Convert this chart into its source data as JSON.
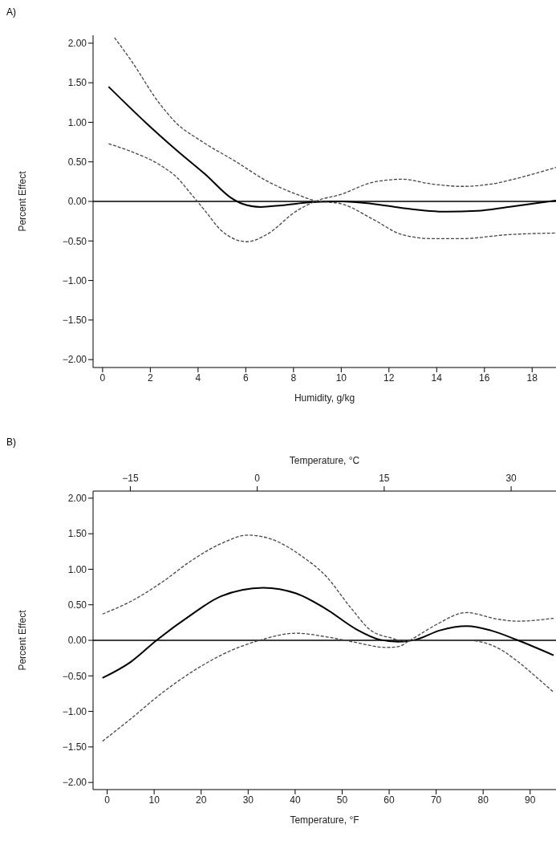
{
  "chart_data": [
    {
      "type": "line",
      "title": "A)",
      "xlabel": "Humidity, g/kg",
      "ylabel": "Percent Effect",
      "xlim": [
        -0.4,
        19
      ],
      "xticks": [
        0,
        2,
        4,
        6,
        8,
        10,
        12,
        14,
        16,
        18
      ],
      "ylim": [
        -2.1,
        2.1
      ],
      "yticks": [
        {
          "value": 2,
          "label": "2.00"
        },
        {
          "value": 1.5,
          "label": "1.50"
        },
        {
          "value": 1,
          "label": "1.00"
        },
        {
          "value": 0.5,
          "label": "0.50"
        },
        {
          "value": 0,
          "label": "0.00"
        },
        {
          "value": -0.5,
          "label": "−0.50"
        },
        {
          "value": -1,
          "label": "−1.00"
        },
        {
          "value": -1.5,
          "label": "−1.50"
        },
        {
          "value": -2,
          "label": "−2.00"
        }
      ],
      "grid": false,
      "marker": "none",
      "ref_lines": [
        {
          "axis": "y",
          "value": 0,
          "color": "#000000"
        }
      ],
      "series": [
        {
          "color": "#000000",
          "line_style": "solid",
          "x": [
            0.25,
            1.83,
            3.09,
            4.35,
            5.36,
            5.86,
            6.62,
            7.5,
            8.76,
            10.0,
            11.3,
            12.5,
            14.4,
            15.7,
            17.0,
            19.0
          ],
          "values": [
            1.45,
            0.99,
            0.65,
            0.33,
            0.05,
            -0.03,
            -0.07,
            -0.05,
            -0.01,
            0,
            -0.03,
            -0.08,
            -0.13,
            -0.12,
            -0.07,
            0.01
          ]
        },
        {
          "color": "#444444",
          "line_style": "dashed",
          "x": [
            0.5,
            1.2,
            2.33,
            3.09,
            4.1,
            5.6,
            6.87,
            8.13,
            8.89,
            10.0,
            11.3,
            12.55,
            13.8,
            15.07,
            17.0,
            19.0
          ],
          "values": [
            2.07,
            1.78,
            1.26,
            0.99,
            0.77,
            0.5,
            0.26,
            0.09,
            0.01,
            -0.03,
            -0.22,
            -0.42,
            -0.47,
            -0.47,
            -0.42,
            -0.4
          ]
        },
        {
          "color": "#444444",
          "line_style": "dashed",
          "x": [
            0.25,
            1.2,
            2.46,
            3.09,
            3.72,
            4.35,
            4.98,
            6.05,
            6.87,
            8.13,
            9.0,
            10.0,
            11.3,
            12.55,
            13.8,
            15.07,
            16.3,
            17.6,
            19.0
          ],
          "values": [
            0.73,
            0.63,
            0.45,
            0.31,
            0.09,
            -0.14,
            -0.37,
            -0.51,
            -0.42,
            -0.12,
            0.01,
            0.09,
            0.24,
            0.28,
            0.22,
            0.19,
            0.22,
            0.31,
            0.43
          ]
        }
      ]
    },
    {
      "type": "line",
      "title": "B)",
      "xlabel": "Temperature, °F",
      "x2label": "Temperature, °C",
      "ylabel": "Percent Effect",
      "xlim": [
        -3,
        95.5
      ],
      "xticks": [
        0,
        10,
        20,
        30,
        40,
        50,
        60,
        70,
        80,
        90
      ],
      "x2lim": [
        -19.4,
        35.3
      ],
      "x2ticks": [
        {
          "value": -15,
          "label": "−15"
        },
        0,
        15,
        30
      ],
      "ylim": [
        -2.1,
        2.1
      ],
      "yticks": [
        {
          "value": 2,
          "label": "2.00"
        },
        {
          "value": 1.5,
          "label": "1.50"
        },
        {
          "value": 1,
          "label": "1.00"
        },
        {
          "value": 0.5,
          "label": "0.50"
        },
        {
          "value": 0,
          "label": "0.00"
        },
        {
          "value": -0.5,
          "label": "−0.50"
        },
        {
          "value": -1,
          "label": "−1.00"
        },
        {
          "value": -1.5,
          "label": "−1.50"
        },
        {
          "value": -2,
          "label": "−2.00"
        }
      ],
      "grid": false,
      "marker": "none",
      "ref_lines": [
        {
          "axis": "y",
          "value": 0,
          "color": "#000000"
        }
      ],
      "series": [
        {
          "color": "#000000",
          "line_style": "solid",
          "x": [
            -1,
            5.1,
            10.5,
            17.9,
            24.2,
            33.2,
            40.2,
            46.6,
            52.9,
            58,
            61.9,
            65.7,
            70.8,
            76.5,
            81.6,
            87.4,
            95
          ],
          "values": [
            -0.53,
            -0.3,
            0,
            0.36,
            0.62,
            0.74,
            0.66,
            0.44,
            0.16,
            0.01,
            -0.02,
            0.01,
            0.14,
            0.2,
            0.14,
            0,
            -0.21
          ]
        },
        {
          "color": "#444444",
          "line_style": "dashed",
          "x": [
            -1,
            5.1,
            11.5,
            17.9,
            24.2,
            30,
            35.1,
            41.5,
            46.6,
            51.7,
            56.1,
            60.6,
            63.1,
            65.7,
            70,
            76.5,
            82.9,
            87.4,
            91,
            95
          ],
          "values": [
            0.37,
            0.55,
            0.81,
            1.12,
            1.36,
            1.48,
            1.42,
            1.18,
            0.9,
            0.47,
            0.14,
            0.03,
            -0.01,
            0,
            0,
            0,
            -0.1,
            -0.3,
            -0.5,
            -0.73
          ]
        },
        {
          "color": "#444444",
          "line_style": "dashed",
          "x": [
            -1,
            5.1,
            11.5,
            17.9,
            24.2,
            31.9,
            40.2,
            46.6,
            52.9,
            59.3,
            61.9,
            64.4,
            65.7,
            70,
            76.5,
            82.9,
            87.4,
            95
          ],
          "values": [
            -1.42,
            -1.1,
            -0.75,
            -0.45,
            -0.21,
            -0.01,
            0.1,
            0.05,
            -0.03,
            -0.1,
            -0.09,
            0,
            0.05,
            0.22,
            0.39,
            0.3,
            0.27,
            0.31
          ]
        }
      ]
    }
  ]
}
